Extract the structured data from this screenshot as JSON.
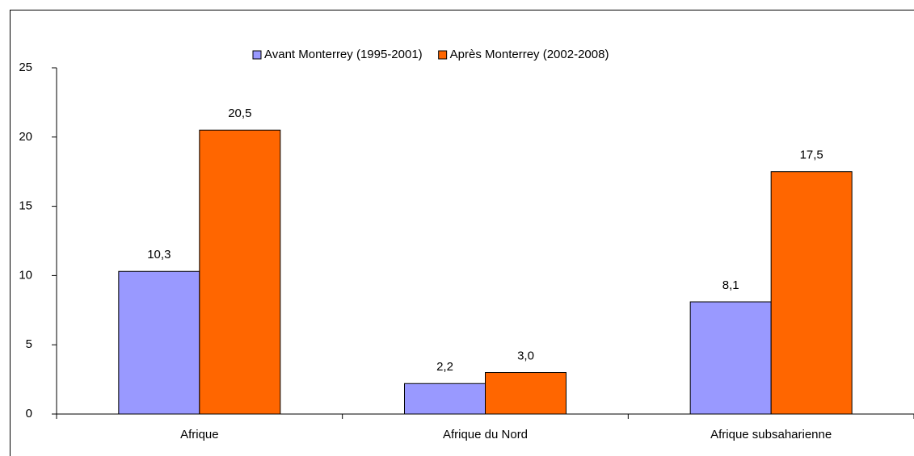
{
  "chart_data": {
    "type": "bar",
    "categories": [
      "Afrique",
      "Afrique du Nord",
      "Afrique subsaharienne"
    ],
    "series": [
      {
        "name": "Avant Monterrey (1995-2001)",
        "color": "#9999ff",
        "values": [
          10.3,
          2.2,
          8.1
        ],
        "value_labels": [
          "10,3",
          "2,2",
          "8,1"
        ]
      },
      {
        "name": "Après Monterrey (2002-2008)",
        "color": "#ff6600",
        "values": [
          20.5,
          3.0,
          17.5
        ],
        "value_labels": [
          "20,5",
          "3,0",
          "17,5"
        ]
      }
    ],
    "ylim": [
      0,
      25
    ],
    "yticks": [
      0,
      5,
      10,
      15,
      20,
      25
    ],
    "grid": false,
    "legend": "top"
  }
}
